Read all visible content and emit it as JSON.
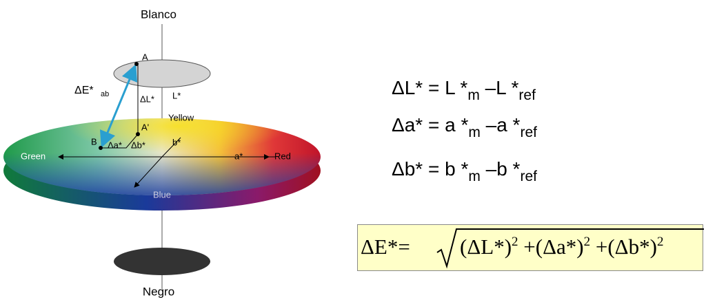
{
  "labels": {
    "white": "Blanco",
    "black": "Negro",
    "point_a": "A",
    "point_a_prime": "A'",
    "point_b": "B",
    "delta_e": "ΔE*",
    "delta_e_sub": "ab",
    "delta_l": "ΔL*",
    "l_axis": "L*",
    "a_axis": "a*",
    "b_axis": "b*",
    "delta_a": "Δa*",
    "delta_b": "Δb*",
    "yellow": "Yellow",
    "green": "Green",
    "red": "Red",
    "blue": "Blue"
  },
  "formulas": [
    {
      "lhs": "ΔL*",
      "eq": "=",
      "t1": "L *",
      "s1": "m",
      "op": "–",
      "t2": "L *",
      "s2": "ref"
    },
    {
      "lhs": "Δa*",
      "eq": "=",
      "t1": "a *",
      "s1": "m",
      "op": "–",
      "t2": "a *",
      "s2": "ref"
    },
    {
      "lhs": "Δb*",
      "eq": "=",
      "t1": "b *",
      "s1": "m",
      "op": "–",
      "t2": "b *",
      "s2": "ref"
    }
  ],
  "total": {
    "lhs": "ΔE*=",
    "t1": "(ΔL*)",
    "p1": "2",
    "plus1": "+",
    "t2": "(Δa*)",
    "p2": "2",
    "plus2": "+",
    "t3": "(Δb*)",
    "p3": "2"
  }
}
